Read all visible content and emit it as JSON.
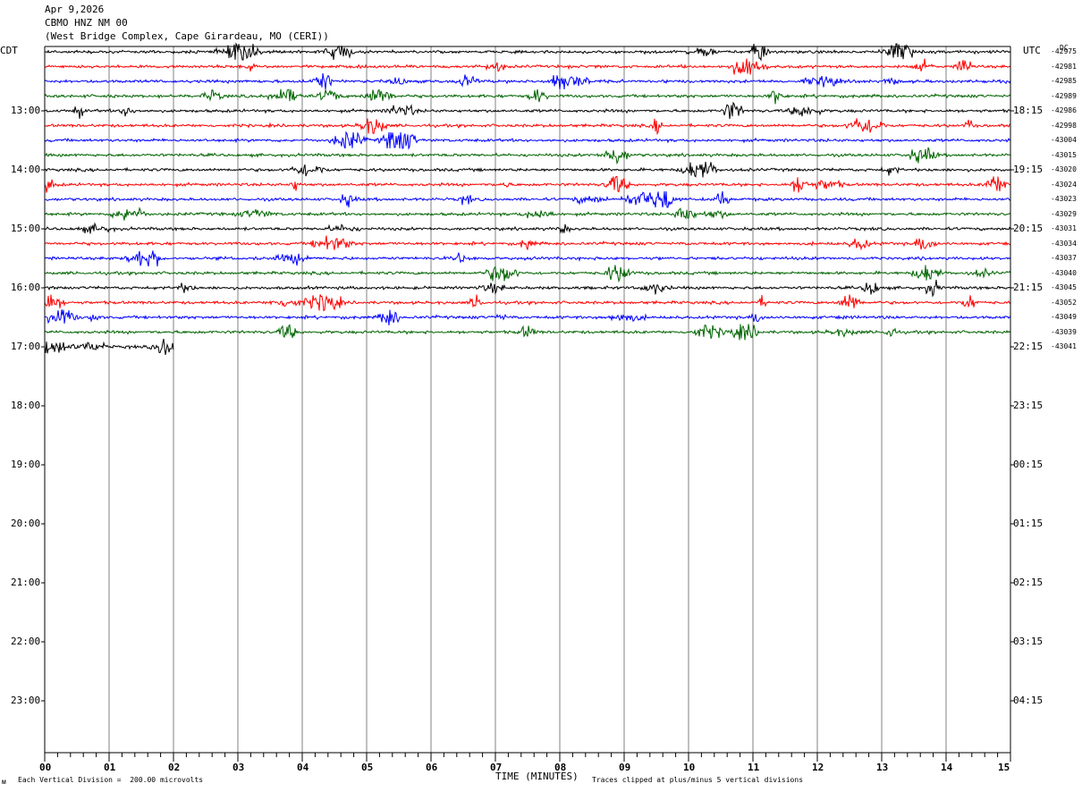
{
  "header": {
    "date": "Apr 9,2026",
    "station": "CBMO HNZ NM 00",
    "location": "(West Bridge Complex, Cape Girardeau, MO (CERI))"
  },
  "tz_left": "CDT",
  "tz_right": "UTC",
  "dc_label": "DC",
  "colors": {
    "trace_cycle": [
      "#000000",
      "#ff0000",
      "#0000ff",
      "#006400"
    ],
    "grid": "#808080"
  },
  "chart_data": {
    "type": "line",
    "subtype": "helicorder seismogram",
    "xlabel": "TIME (MINUTES)",
    "xlim": [
      0,
      15
    ],
    "x_ticks": [
      "00",
      "01",
      "02",
      "03",
      "04",
      "05",
      "06",
      "07",
      "08",
      "09",
      "10",
      "11",
      "12",
      "13",
      "14",
      "15"
    ],
    "hour_labels_left": [
      "13:00",
      "14:00",
      "15:00",
      "16:00",
      "17:00",
      "18:00",
      "19:00",
      "20:00",
      "21:00",
      "22:00",
      "23:00"
    ],
    "hour_labels_right": [
      "18:15",
      "19:15",
      "20:15",
      "21:15",
      "22:15",
      "23:15",
      "00:15",
      "01:15",
      "02:15",
      "03:15",
      "04:15"
    ],
    "trace_minutes": 15,
    "traces_per_hour": 4,
    "traces_total": 21,
    "last_trace_minutes_recorded": 2,
    "dc_offsets": [
      "-42975",
      "-42981",
      "-42985",
      "-42989",
      "-42986",
      "-42998",
      "-43004",
      "-43015",
      "-43020",
      "-43024",
      "-43023",
      "-43029",
      "-43031",
      "-43034",
      "-43037",
      "-43040",
      "-43045",
      "-43052",
      "-43049",
      "-43039",
      "-43041"
    ],
    "scale_note": "Each Vertical Division =  200.00 microvolts",
    "clip_note": "Traces clipped at plus/minus 5 vertical divisions",
    "grid": true
  }
}
